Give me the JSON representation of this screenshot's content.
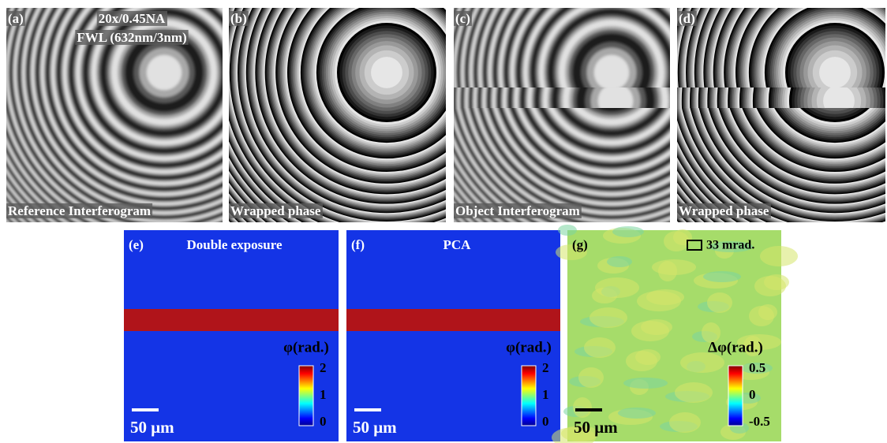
{
  "top_panels": [
    {
      "label": "(a)",
      "caption": "Reference Interferogram",
      "annotations": [
        "20x/0.45NA",
        "FWL (632nm/3nm)"
      ]
    },
    {
      "label": "(b)",
      "caption": "Wrapped phase"
    },
    {
      "label": "(c)",
      "caption": "Object Interferogram"
    },
    {
      "label": "(d)",
      "caption": "Wrapped phase"
    }
  ],
  "bottom_panels": [
    {
      "label": "(e)",
      "title": "Double exposure",
      "colorbar": {
        "title": "φ(rad.)",
        "ticks": [
          "2",
          "1",
          "0"
        ]
      },
      "scale_bar": "50 μm"
    },
    {
      "label": "(f)",
      "title": "PCA",
      "colorbar": {
        "title": "φ(rad.)",
        "ticks": [
          "2",
          "1",
          "0"
        ]
      },
      "scale_bar": "50 μm"
    },
    {
      "label": "(g)",
      "legend": "33 mrad.",
      "colorbar": {
        "title": "Δφ(rad.)",
        "ticks": [
          "0.5",
          "0",
          "-0.5"
        ]
      },
      "scale_bar": "50 μm"
    }
  ]
}
